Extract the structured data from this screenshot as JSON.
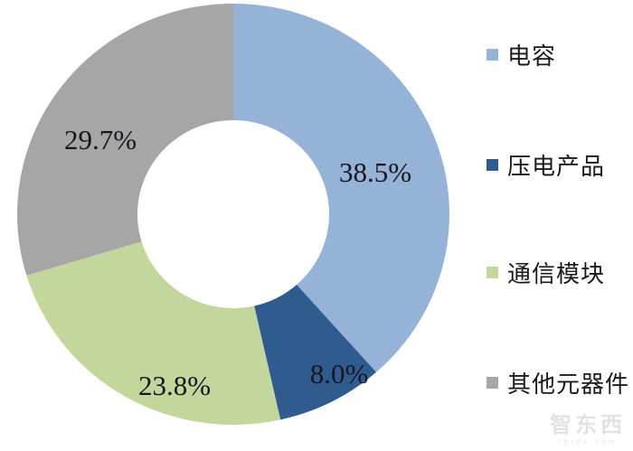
{
  "chart_data": {
    "type": "pie",
    "subtype": "donut",
    "title": "",
    "categories": [
      "电容",
      "压电产品",
      "通信模块",
      "其他元器件"
    ],
    "values": [
      38.5,
      8.0,
      23.8,
      29.7
    ],
    "labels": [
      "38.5%",
      "8.0%",
      "23.8%",
      "29.7%"
    ],
    "colors": [
      "#95B3D7",
      "#2F5B8F",
      "#C3D69B",
      "#A6A6A6"
    ],
    "start_angle_deg": 0,
    "direction": "clockwise",
    "legend_position": "right",
    "background": "#FFFFFF"
  },
  "legend": {
    "items": [
      {
        "label": "电容",
        "color": "#95B3D7"
      },
      {
        "label": "压电产品",
        "color": "#2F5B8F"
      },
      {
        "label": "通信模块",
        "color": "#C3D69B"
      },
      {
        "label": "其他元器件",
        "color": "#A6A6A6"
      }
    ]
  },
  "watermark": {
    "logo_text": "智东西",
    "domain_text": "zhidx.com"
  }
}
